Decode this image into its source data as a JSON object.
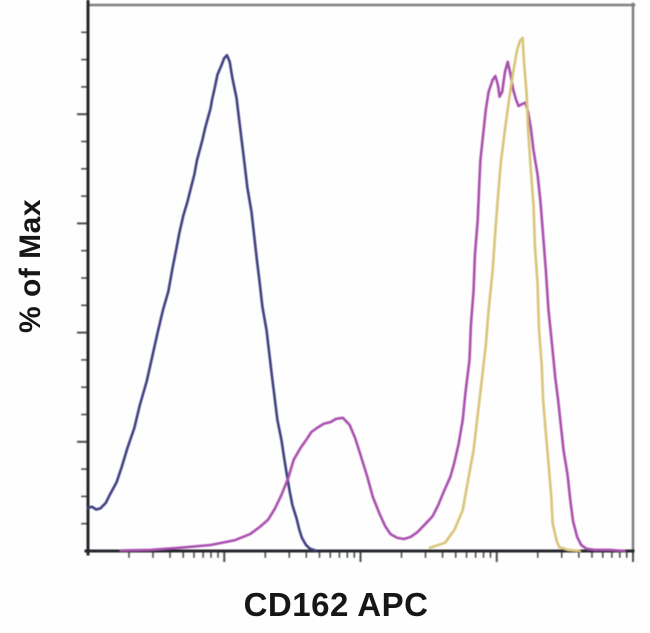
{
  "chart_data": {
    "type": "line",
    "title": "",
    "xlabel": "CD162 APC",
    "ylabel": "% of Max",
    "x_scale": "log10",
    "x_unit": "decades (unlabeled log fluorescence axis, 4 decades)",
    "xlim": [
      0,
      4
    ],
    "ylim": [
      0,
      100
    ],
    "grid": false,
    "legend_position": "none",
    "frame": {
      "top_right_color": "#7e7e7e",
      "axis_color": "#26262e",
      "tick_color": "#4d4d4d"
    },
    "axis_ticks": {
      "x_major_decades": [
        0,
        1,
        2,
        3,
        4
      ],
      "x_minor_mantissas": [
        2,
        3,
        4,
        5,
        6,
        7,
        8,
        9
      ],
      "y_major_pct": [
        20,
        40,
        60,
        80
      ],
      "y_minor_step_pct": 5
    },
    "series": [
      {
        "name": "navy-histogram",
        "color": "#3f3f82",
        "points": [
          [
            0.0,
            7.9
          ],
          [
            0.03,
            8.1
          ],
          [
            0.06,
            7.6
          ],
          [
            0.09,
            7.8
          ],
          [
            0.13,
            8.8
          ],
          [
            0.16,
            10.3
          ],
          [
            0.21,
            12.6
          ],
          [
            0.25,
            15.6
          ],
          [
            0.29,
            18.9
          ],
          [
            0.34,
            22.5
          ],
          [
            0.38,
            26.7
          ],
          [
            0.43,
            31.0
          ],
          [
            0.47,
            35.4
          ],
          [
            0.51,
            39.9
          ],
          [
            0.55,
            44.1
          ],
          [
            0.59,
            47.6
          ],
          [
            0.62,
            51.8
          ],
          [
            0.65,
            55.6
          ],
          [
            0.67,
            58.2
          ],
          [
            0.7,
            61.5
          ],
          [
            0.73,
            64.0
          ],
          [
            0.76,
            67.0
          ],
          [
            0.78,
            68.9
          ],
          [
            0.8,
            71.6
          ],
          [
            0.82,
            73.4
          ],
          [
            0.84,
            75.3
          ],
          [
            0.86,
            77.5
          ],
          [
            0.88,
            79.3
          ],
          [
            0.9,
            81.1
          ],
          [
            0.91,
            82.6
          ],
          [
            0.93,
            84.8
          ],
          [
            0.95,
            87.2
          ],
          [
            0.98,
            89.0
          ],
          [
            1.0,
            90.3
          ],
          [
            1.02,
            90.8
          ],
          [
            1.04,
            89.6
          ],
          [
            1.06,
            86.6
          ],
          [
            1.09,
            83.0
          ],
          [
            1.11,
            78.9
          ],
          [
            1.13,
            74.7
          ],
          [
            1.15,
            70.7
          ],
          [
            1.17,
            66.5
          ],
          [
            1.2,
            62.1
          ],
          [
            1.22,
            57.7
          ],
          [
            1.24,
            53.3
          ],
          [
            1.26,
            49.1
          ],
          [
            1.28,
            44.7
          ],
          [
            1.31,
            40.5
          ],
          [
            1.33,
            36.3
          ],
          [
            1.35,
            32.1
          ],
          [
            1.37,
            28.0
          ],
          [
            1.39,
            24.0
          ],
          [
            1.42,
            20.3
          ],
          [
            1.44,
            17.0
          ],
          [
            1.46,
            13.9
          ],
          [
            1.48,
            11.0
          ],
          [
            1.5,
            8.4
          ],
          [
            1.53,
            6.0
          ],
          [
            1.55,
            4.0
          ],
          [
            1.57,
            2.4
          ],
          [
            1.6,
            1.1
          ],
          [
            1.63,
            0.4
          ],
          [
            1.67,
            0.1
          ]
        ]
      },
      {
        "name": "magenta-histogram",
        "color": "#a94fae",
        "points": [
          [
            0.24,
            0.1
          ],
          [
            0.46,
            0.2
          ],
          [
            0.68,
            0.6
          ],
          [
            0.9,
            1.1
          ],
          [
            1.08,
            2.0
          ],
          [
            1.19,
            3.1
          ],
          [
            1.26,
            4.4
          ],
          [
            1.32,
            5.7
          ],
          [
            1.37,
            7.7
          ],
          [
            1.42,
            10.3
          ],
          [
            1.47,
            13.4
          ],
          [
            1.51,
            16.7
          ],
          [
            1.56,
            18.9
          ],
          [
            1.6,
            20.3
          ],
          [
            1.64,
            21.8
          ],
          [
            1.69,
            22.7
          ],
          [
            1.73,
            23.3
          ],
          [
            1.78,
            23.6
          ],
          [
            1.82,
            24.2
          ],
          [
            1.87,
            24.4
          ],
          [
            1.92,
            23.1
          ],
          [
            1.96,
            20.7
          ],
          [
            2.0,
            17.6
          ],
          [
            2.05,
            13.6
          ],
          [
            2.09,
            9.9
          ],
          [
            2.14,
            6.8
          ],
          [
            2.18,
            4.6
          ],
          [
            2.22,
            3.1
          ],
          [
            2.27,
            2.4
          ],
          [
            2.32,
            2.2
          ],
          [
            2.37,
            2.6
          ],
          [
            2.42,
            3.5
          ],
          [
            2.47,
            4.8
          ],
          [
            2.53,
            6.4
          ],
          [
            2.57,
            8.4
          ],
          [
            2.61,
            10.8
          ],
          [
            2.66,
            13.6
          ],
          [
            2.69,
            16.3
          ],
          [
            2.72,
            19.6
          ],
          [
            2.75,
            24.0
          ],
          [
            2.77,
            28.9
          ],
          [
            2.8,
            35.0
          ],
          [
            2.81,
            41.4
          ],
          [
            2.83,
            47.8
          ],
          [
            2.84,
            54.2
          ],
          [
            2.86,
            60.6
          ],
          [
            2.87,
            66.1
          ],
          [
            2.88,
            71.6
          ],
          [
            2.9,
            76.2
          ],
          [
            2.92,
            80.8
          ],
          [
            2.94,
            84.1
          ],
          [
            2.97,
            86.3
          ],
          [
            2.99,
            87.0
          ],
          [
            3.01,
            85.2
          ],
          [
            3.02,
            83.2
          ],
          [
            3.04,
            84.1
          ],
          [
            3.06,
            87.7
          ],
          [
            3.08,
            89.6
          ],
          [
            3.1,
            87.4
          ],
          [
            3.12,
            84.6
          ],
          [
            3.14,
            82.8
          ],
          [
            3.16,
            81.5
          ],
          [
            3.19,
            81.9
          ],
          [
            3.21,
            82.1
          ],
          [
            3.23,
            80.4
          ],
          [
            3.25,
            77.5
          ],
          [
            3.27,
            73.4
          ],
          [
            3.3,
            68.9
          ],
          [
            3.32,
            64.3
          ],
          [
            3.34,
            57.9
          ],
          [
            3.36,
            51.5
          ],
          [
            3.38,
            44.1
          ],
          [
            3.41,
            36.8
          ],
          [
            3.43,
            31.7
          ],
          [
            3.45,
            27.7
          ],
          [
            3.47,
            23.1
          ],
          [
            3.49,
            18.5
          ],
          [
            3.52,
            13.9
          ],
          [
            3.54,
            9.3
          ],
          [
            3.56,
            5.5
          ],
          [
            3.59,
            2.6
          ],
          [
            3.62,
            1.1
          ],
          [
            3.66,
            0.4
          ],
          [
            3.72,
            0.2
          ],
          [
            3.83,
            0.2
          ],
          [
            3.94,
            0.0
          ]
        ]
      },
      {
        "name": "orange-histogram",
        "color": "#d9c478",
        "points": [
          [
            2.51,
            0.6
          ],
          [
            2.62,
            1.5
          ],
          [
            2.69,
            3.9
          ],
          [
            2.75,
            7.5
          ],
          [
            2.79,
            13.0
          ],
          [
            2.83,
            18.5
          ],
          [
            2.86,
            24.9
          ],
          [
            2.89,
            31.3
          ],
          [
            2.92,
            37.7
          ],
          [
            2.94,
            44.1
          ],
          [
            2.97,
            51.5
          ],
          [
            2.99,
            58.8
          ],
          [
            3.01,
            65.2
          ],
          [
            3.03,
            71.1
          ],
          [
            3.06,
            77.1
          ],
          [
            3.09,
            82.6
          ],
          [
            3.12,
            87.7
          ],
          [
            3.15,
            91.8
          ],
          [
            3.17,
            93.4
          ],
          [
            3.19,
            94.0
          ],
          [
            3.2,
            89.6
          ],
          [
            3.22,
            83.5
          ],
          [
            3.23,
            77.1
          ],
          [
            3.25,
            69.8
          ],
          [
            3.27,
            63.4
          ],
          [
            3.28,
            56.0
          ],
          [
            3.3,
            48.7
          ],
          [
            3.31,
            40.5
          ],
          [
            3.33,
            34.1
          ],
          [
            3.34,
            27.7
          ],
          [
            3.36,
            21.8
          ],
          [
            3.38,
            16.1
          ],
          [
            3.4,
            9.9
          ],
          [
            3.41,
            5.1
          ],
          [
            3.44,
            1.8
          ],
          [
            3.46,
            0.7
          ],
          [
            3.52,
            0.2
          ],
          [
            3.61,
            0.0
          ]
        ]
      }
    ]
  }
}
